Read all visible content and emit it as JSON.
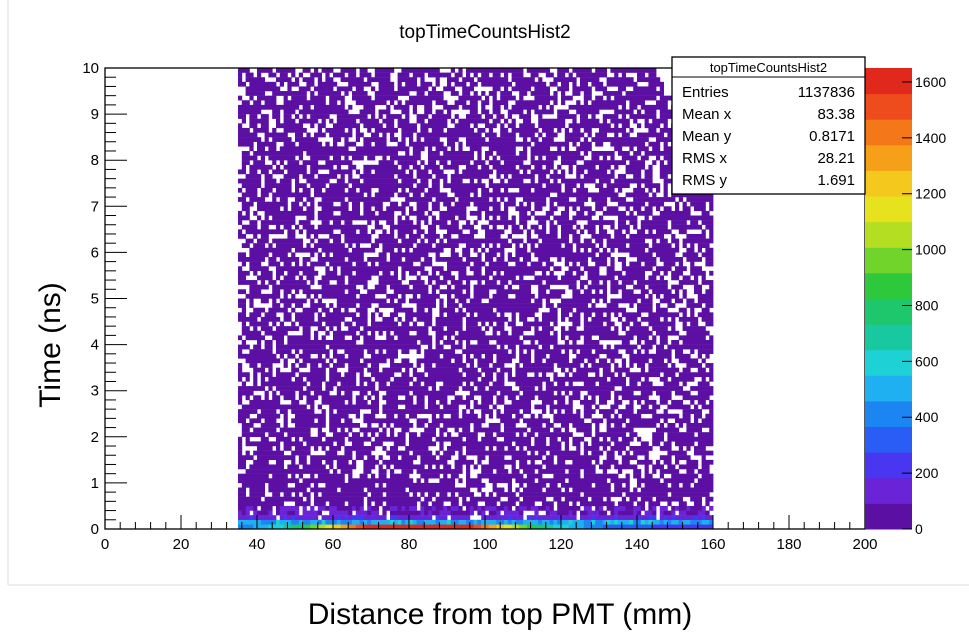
{
  "chart_data": {
    "type": "heatmap",
    "title": "topTimeCountsHist2",
    "xlabel": "Distance from top PMT (mm)",
    "ylabel": "Time (ns)",
    "xlim": [
      0,
      200
    ],
    "ylim": [
      0,
      10
    ],
    "x_ticks": [
      "0",
      "20",
      "40",
      "60",
      "80",
      "100",
      "120",
      "140",
      "160",
      "180",
      "200"
    ],
    "y_ticks": [
      "0",
      "1",
      "2",
      "3",
      "4",
      "5",
      "6",
      "7",
      "8",
      "9",
      "10"
    ],
    "colorbar": {
      "range": [
        0,
        1650
      ],
      "ticks": [
        "0",
        "200",
        "400",
        "600",
        "800",
        "1000",
        "1200",
        "1400",
        "1600"
      ]
    },
    "data_region": {
      "x_range": [
        35,
        160
      ],
      "description_values": {
        "peak_row_y": [
          0.0,
          0.1
        ],
        "peak_row_max": 1650,
        "bulk_level": 30
      }
    },
    "stats_box": {
      "title": "topTimeCountsHist2",
      "rows": [
        {
          "label": "Entries",
          "value": "1137836"
        },
        {
          "label": "Mean x",
          "value": "83.38"
        },
        {
          "label": "Mean y",
          "value": "0.8171"
        },
        {
          "label": "RMS x",
          "value": "28.21"
        },
        {
          "label": "RMS y",
          "value": "1.691"
        }
      ]
    }
  }
}
